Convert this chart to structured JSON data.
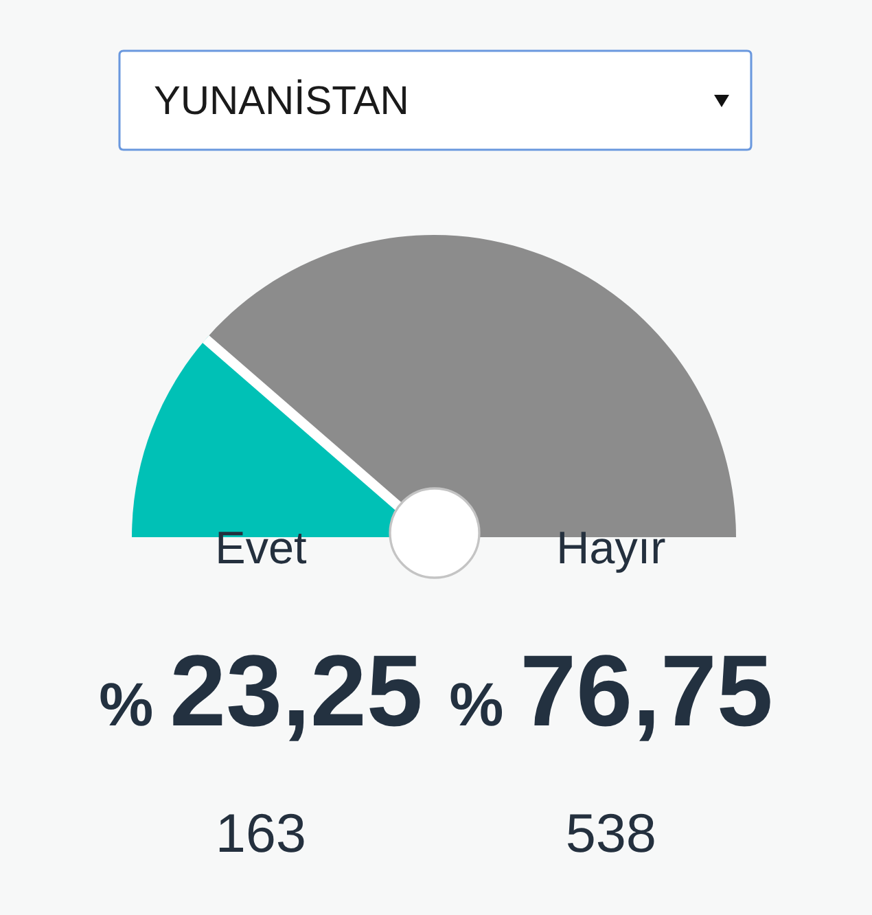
{
  "chart_data": {
    "type": "pie",
    "title": "YUNANİSTAN",
    "categories": [
      "Evet",
      "Hayır"
    ],
    "values": [
      23.25,
      76.75
    ],
    "colors": [
      "#00c1b6",
      "#8c8c8c"
    ],
    "needle": "Evet",
    "value_labels": [
      "% 23,25",
      "% 76,75"
    ],
    "annotations": [
      "163",
      "538"
    ]
  }
}
